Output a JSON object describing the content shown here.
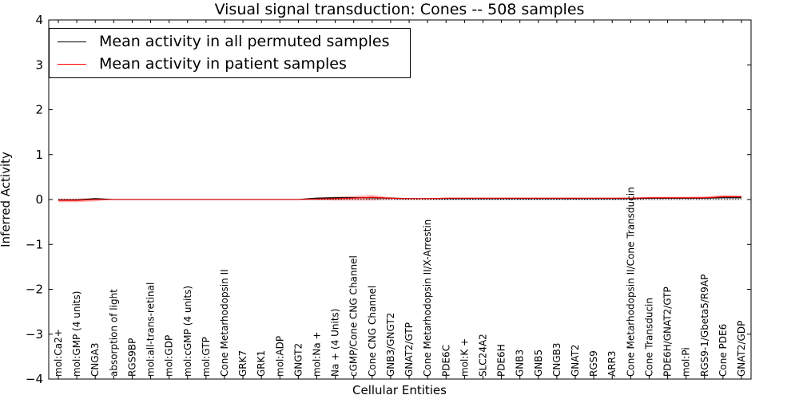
{
  "chart_data": {
    "type": "line",
    "title": "Visual signal transduction: Cones -- 508 samples",
    "xlabel": "Cellular Entities",
    "ylabel": "Inferred Activity",
    "ylim": [
      -4,
      4
    ],
    "yticks": [
      4,
      3,
      2,
      1,
      0,
      -1,
      -2,
      -3,
      -4
    ],
    "ytick_labels": [
      "4",
      "3",
      "2",
      "1",
      "0",
      "−1",
      "−2",
      "−3",
      "−4"
    ],
    "categories": [
      "mol:Ca2+",
      "mol:GMP (4 units)",
      "CNGA3",
      "absorption of light",
      "RGS9BP",
      "mol:all-trans-retinal",
      "mol:GDP",
      "mol:cGMP (4 units)",
      "mol:GTP",
      "Cone Metarhodopsin II",
      "GRK7",
      "GRK1",
      "mol:ADP",
      "GNGT2",
      "mol:Na +",
      "Na + (4 Units)",
      "cGMP/Cone CNG Channel",
      "Cone CNG Channel",
      "GNB3/GNGT2",
      "GNAT2/GTP",
      "Cone Metarhodopsin II/X-Arrestin",
      "PDE6C",
      "mol:K +",
      "SLC24A2",
      "PDE6H",
      "GNB3",
      "GNB5",
      "CNGB3",
      "GNAT2",
      "RGS9",
      "ARR3",
      "Cone Metarhodopsin II/Cone Transducin",
      "Cone Transducin",
      "PDE6H/GNAT2/GTP",
      "mol:Pi",
      "RGS9-1/Gbeta5/R9AP",
      "Cone PDE6",
      "GNAT2/GDP"
    ],
    "series": [
      {
        "name": "Mean activity in all permuted samples",
        "color": "#000000",
        "values": [
          -0.01,
          -0.01,
          0.02,
          0.0,
          0.0,
          0.0,
          0.0,
          0.0,
          0.0,
          0.0,
          0.0,
          0.0,
          0.0,
          0.0,
          0.03,
          0.04,
          0.04,
          0.04,
          0.03,
          0.02,
          0.02,
          0.02,
          0.02,
          0.02,
          0.02,
          0.02,
          0.02,
          0.02,
          0.02,
          0.02,
          0.02,
          0.02,
          0.03,
          0.03,
          0.03,
          0.03,
          0.04,
          0.04
        ]
      },
      {
        "name": "Mean activity in patient samples",
        "color": "#ff0000",
        "values": [
          -0.02,
          -0.02,
          0.0,
          0.0,
          0.0,
          0.0,
          0.0,
          0.0,
          0.0,
          0.0,
          0.0,
          0.0,
          0.0,
          0.0,
          0.01,
          0.02,
          0.03,
          0.05,
          0.03,
          0.02,
          0.02,
          0.03,
          0.03,
          0.03,
          0.03,
          0.03,
          0.03,
          0.03,
          0.03,
          0.03,
          0.03,
          0.03,
          0.04,
          0.04,
          0.04,
          0.04,
          0.06,
          0.06
        ],
        "band_lower": [
          -0.06,
          -0.06,
          -0.04,
          0.0,
          0.0,
          0.0,
          0.0,
          0.0,
          0.0,
          0.0,
          0.0,
          0.0,
          0.0,
          0.0,
          -0.01,
          -0.02,
          -0.02,
          -0.02,
          0.0,
          0.01,
          0.01,
          0.01,
          0.01,
          0.01,
          0.01,
          0.01,
          0.01,
          0.01,
          0.01,
          0.01,
          0.01,
          0.01,
          0.02,
          0.02,
          0.02,
          0.02,
          0.03,
          0.03
        ],
        "band_upper": [
          0.02,
          0.02,
          0.03,
          0.0,
          0.0,
          0.0,
          0.0,
          0.0,
          0.0,
          0.0,
          0.0,
          0.0,
          0.0,
          0.0,
          0.04,
          0.06,
          0.08,
          0.1,
          0.05,
          0.03,
          0.03,
          0.04,
          0.04,
          0.04,
          0.04,
          0.04,
          0.04,
          0.04,
          0.04,
          0.04,
          0.04,
          0.04,
          0.06,
          0.06,
          0.06,
          0.07,
          0.1,
          0.09
        ]
      }
    ],
    "reference_line": 0,
    "legend_position": "top-left"
  }
}
